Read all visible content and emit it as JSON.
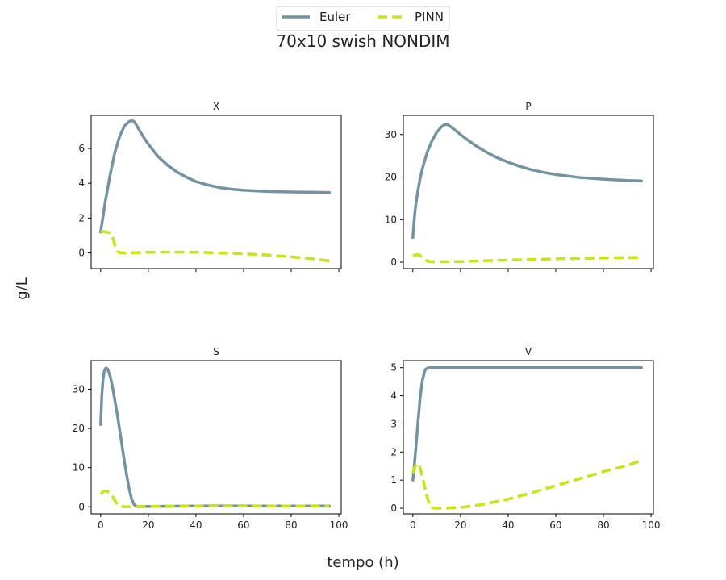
{
  "figure": {
    "title": "70x10 swish NONDIM",
    "xlabel": "tempo (h)",
    "ylabel": "g/L"
  },
  "legend": {
    "placement": "top-center",
    "entries": [
      {
        "label": "Euler",
        "color": "#7393a2",
        "style": "solid"
      },
      {
        "label": "PINN",
        "color": "#c5e515",
        "style": "dashed"
      }
    ]
  },
  "chart_data": [
    {
      "type": "line",
      "title": "X",
      "xlim": [
        -4,
        101
      ],
      "ylim": [
        -0.9,
        7.9
      ],
      "xticks": [
        0,
        20,
        40,
        60,
        80,
        100
      ],
      "yticks": [
        0,
        2,
        4,
        6
      ],
      "show_xticklabels": false,
      "grid": false,
      "series": [
        {
          "name": "Euler",
          "color": "#7393a2",
          "dashed": false,
          "x": [
            0,
            2,
            4,
            6,
            8,
            10,
            12,
            13,
            14,
            15,
            16,
            18,
            20,
            24,
            28,
            32,
            36,
            40,
            45,
            50,
            55,
            60,
            70,
            80,
            90,
            96
          ],
          "y": [
            1.2,
            3.0,
            4.5,
            5.8,
            6.7,
            7.3,
            7.55,
            7.6,
            7.55,
            7.35,
            7.1,
            6.65,
            6.25,
            5.55,
            5.05,
            4.65,
            4.35,
            4.1,
            3.9,
            3.75,
            3.66,
            3.6,
            3.53,
            3.5,
            3.48,
            3.47
          ]
        },
        {
          "name": "PINN",
          "color": "#c5e515",
          "dashed": true,
          "x": [
            0,
            2,
            4,
            5,
            6,
            7,
            8,
            10,
            15,
            20,
            30,
            40,
            50,
            60,
            70,
            80,
            90,
            96
          ],
          "y": [
            1.25,
            1.22,
            1.15,
            0.9,
            0.45,
            0.1,
            0.02,
            0.0,
            0.02,
            0.04,
            0.05,
            0.04,
            0.0,
            -0.05,
            -0.12,
            -0.22,
            -0.35,
            -0.45
          ]
        }
      ]
    },
    {
      "type": "line",
      "title": "P",
      "xlim": [
        -4,
        101
      ],
      "ylim": [
        -1.5,
        34.5
      ],
      "xticks": [
        0,
        20,
        40,
        60,
        80,
        100
      ],
      "yticks": [
        0,
        10,
        20,
        30
      ],
      "show_xticklabels": false,
      "grid": false,
      "series": [
        {
          "name": "Euler",
          "color": "#7393a2",
          "dashed": false,
          "x": [
            0,
            0.5,
            1,
            2,
            3,
            4,
            6,
            8,
            10,
            12,
            13,
            14,
            15,
            16,
            18,
            20,
            24,
            28,
            32,
            36,
            40,
            45,
            50,
            55,
            60,
            70,
            80,
            90,
            96
          ],
          "y": [
            5.8,
            9.5,
            12.5,
            16.5,
            19.5,
            22.0,
            25.8,
            28.5,
            30.5,
            31.8,
            32.2,
            32.4,
            32.2,
            31.8,
            30.9,
            30.0,
            28.3,
            26.8,
            25.5,
            24.4,
            23.5,
            22.5,
            21.7,
            21.1,
            20.6,
            19.9,
            19.5,
            19.2,
            19.1
          ]
        },
        {
          "name": "PINN",
          "color": "#c5e515",
          "dashed": true,
          "x": [
            0,
            1,
            2,
            3,
            4,
            5,
            6,
            7,
            8,
            10,
            20,
            30,
            40,
            50,
            60,
            70,
            80,
            90,
            96
          ],
          "y": [
            1.5,
            1.7,
            1.8,
            1.6,
            1.2,
            0.7,
            0.3,
            0.15,
            0.1,
            0.1,
            0.15,
            0.35,
            0.5,
            0.65,
            0.8,
            0.9,
            1.0,
            1.1,
            1.1
          ]
        }
      ]
    },
    {
      "type": "line",
      "title": "S",
      "xlim": [
        -4,
        101
      ],
      "ylim": [
        -1.8,
        37.3
      ],
      "xticks": [
        0,
        20,
        40,
        60,
        80,
        100
      ],
      "yticks": [
        0,
        10,
        20,
        30
      ],
      "show_xticklabels": true,
      "grid": false,
      "series": [
        {
          "name": "Euler",
          "color": "#7393a2",
          "dashed": false,
          "x": [
            0,
            0.5,
            1,
            1.5,
            2,
            2.5,
            3,
            4,
            5,
            6,
            7,
            8,
            9,
            10,
            11,
            12,
            13,
            14,
            15,
            16,
            20,
            40,
            60,
            80,
            96
          ],
          "y": [
            21.0,
            28.5,
            32.5,
            34.5,
            35.3,
            35.4,
            35.0,
            33.3,
            30.5,
            27.0,
            23.5,
            19.5,
            15.5,
            11.5,
            7.8,
            4.5,
            2.0,
            0.6,
            0.1,
            0.05,
            0.1,
            0.2,
            0.2,
            0.2,
            0.2
          ]
        },
        {
          "name": "PINN",
          "color": "#c5e515",
          "dashed": true,
          "x": [
            0,
            1,
            2,
            3,
            4,
            5,
            6,
            7,
            8,
            10,
            15,
            20,
            40,
            45,
            50,
            55,
            60,
            70,
            80,
            96
          ],
          "y": [
            3.3,
            3.8,
            4.1,
            3.9,
            3.4,
            2.6,
            1.5,
            0.7,
            0.2,
            0.0,
            0.05,
            0.1,
            0.2,
            0.3,
            0.35,
            0.3,
            0.3,
            0.2,
            0.2,
            0.15
          ]
        }
      ]
    },
    {
      "type": "line",
      "title": "V",
      "xlim": [
        -4,
        101
      ],
      "ylim": [
        -0.2,
        5.25
      ],
      "xticks": [
        0,
        20,
        40,
        60,
        80,
        100
      ],
      "yticks": [
        0,
        1,
        2,
        3,
        4,
        5
      ],
      "show_xticklabels": true,
      "grid": false,
      "series": [
        {
          "name": "Euler",
          "color": "#7393a2",
          "dashed": false,
          "x": [
            0,
            0.5,
            1,
            2,
            3,
            4,
            5,
            5.5,
            6,
            7,
            8,
            10,
            20,
            40,
            60,
            80,
            96
          ],
          "y": [
            1.0,
            1.4,
            1.9,
            2.9,
            3.9,
            4.55,
            4.88,
            4.95,
            4.98,
            5.0,
            5.0,
            5.0,
            5.0,
            5.0,
            5.0,
            5.0,
            5.0
          ]
        },
        {
          "name": "PINN",
          "color": "#c5e515",
          "dashed": true,
          "x": [
            0,
            1,
            2,
            3,
            4,
            5,
            6,
            7,
            8,
            10,
            15,
            20,
            25,
            30,
            40,
            50,
            60,
            70,
            80,
            90,
            96
          ],
          "y": [
            1.25,
            1.5,
            1.6,
            1.45,
            1.1,
            0.75,
            0.4,
            0.12,
            0.02,
            0.0,
            0.01,
            0.03,
            0.08,
            0.15,
            0.32,
            0.55,
            0.8,
            1.05,
            1.3,
            1.52,
            1.7
          ]
        }
      ]
    }
  ]
}
